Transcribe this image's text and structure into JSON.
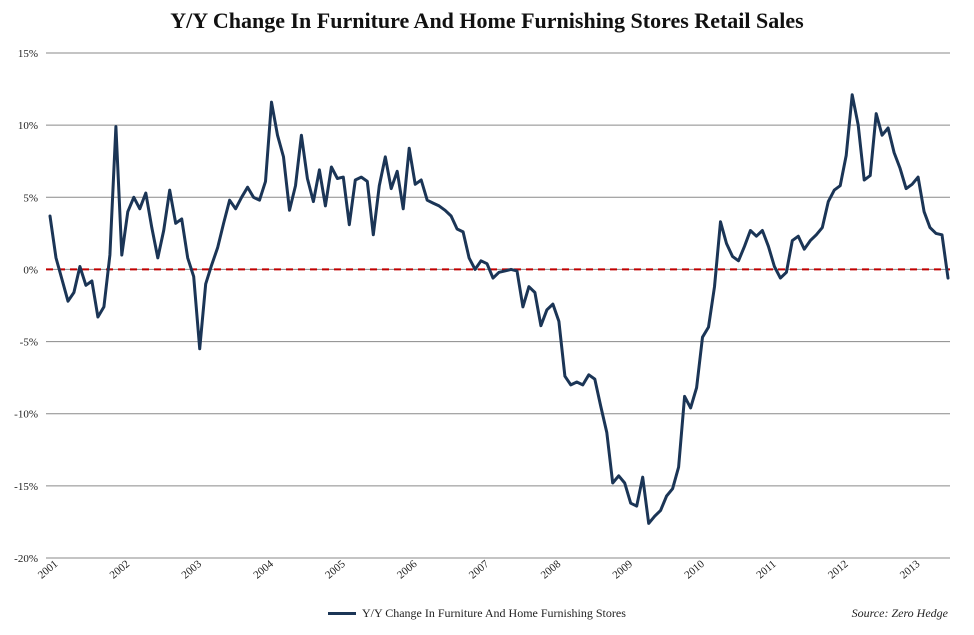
{
  "chart_data": {
    "type": "line",
    "title": "Y/Y Change In Furniture And Home Furnishing Stores Retail Sales",
    "xlabel": "",
    "ylabel": "",
    "ylim": [
      -20,
      15
    ],
    "y_ticks": [
      "15%",
      "10%",
      "5%",
      "0%",
      "-5%",
      "-10%",
      "-15%",
      "-20%"
    ],
    "x_ticks": [
      "2001",
      "2002",
      "2003",
      "2004",
      "2005",
      "2006",
      "2007",
      "2008",
      "2009",
      "2010",
      "2011",
      "2012",
      "2013"
    ],
    "grid": true,
    "legend_position": "bottom-center",
    "zero_line": {
      "value": 0,
      "color": "#c00000",
      "style": "dashed"
    },
    "series": [
      {
        "name": "Y/Y Change In Furniture And Home Furnishing Stores",
        "color": "#1b3556",
        "start": "2001-01",
        "values": [
          3.7,
          0.8,
          -0.7,
          -2.2,
          -1.6,
          0.2,
          -1.1,
          -0.8,
          -3.3,
          -2.6,
          1.0,
          9.9,
          1.0,
          4.0,
          5.0,
          4.2,
          5.3,
          2.9,
          0.8,
          2.7,
          5.5,
          3.2,
          3.5,
          0.8,
          -0.5,
          -5.5,
          -1.0,
          0.3,
          1.5,
          3.2,
          4.8,
          4.2,
          5.0,
          5.7,
          5.0,
          4.8,
          6.1,
          11.6,
          9.3,
          7.8,
          4.1,
          5.8,
          9.3,
          6.3,
          4.7,
          6.9,
          4.4,
          7.1,
          6.3,
          6.4,
          3.1,
          6.2,
          6.4,
          6.1,
          2.4,
          5.8,
          7.8,
          5.6,
          6.8,
          4.2,
          8.4,
          5.9,
          6.2,
          4.8,
          4.6,
          4.4,
          4.1,
          3.7,
          2.8,
          2.6,
          0.8,
          0.0,
          0.6,
          0.4,
          -0.6,
          -0.2,
          -0.1,
          0.0,
          -0.1,
          -2.6,
          -1.2,
          -1.6,
          -3.9,
          -2.8,
          -2.4,
          -3.6,
          -7.4,
          -8.0,
          -7.8,
          -8.0,
          -7.3,
          -7.6,
          -9.5,
          -11.3,
          -14.8,
          -14.3,
          -14.8,
          -16.2,
          -16.4,
          -14.4,
          -17.6,
          -17.1,
          -16.7,
          -15.7,
          -15.2,
          -13.7,
          -8.8,
          -9.6,
          -8.2,
          -4.7,
          -4.0,
          -1.2,
          3.3,
          1.8,
          0.9,
          0.6,
          1.6,
          2.7,
          2.3,
          2.7,
          1.6,
          0.2,
          -0.6,
          -0.2,
          2.0,
          2.3,
          1.4,
          2.0,
          2.4,
          2.9,
          4.7,
          5.5,
          5.8,
          7.9,
          12.1,
          10.0,
          6.2,
          6.5,
          10.8,
          9.3,
          9.8,
          8.1,
          7.0,
          5.6,
          5.9,
          6.4,
          4.0,
          2.9,
          2.5,
          2.4,
          -0.6
        ]
      }
    ]
  },
  "legend": {
    "label": "Y/Y Change In Furniture And Home Furnishing Stores"
  },
  "source": "Source: Zero Hedge"
}
